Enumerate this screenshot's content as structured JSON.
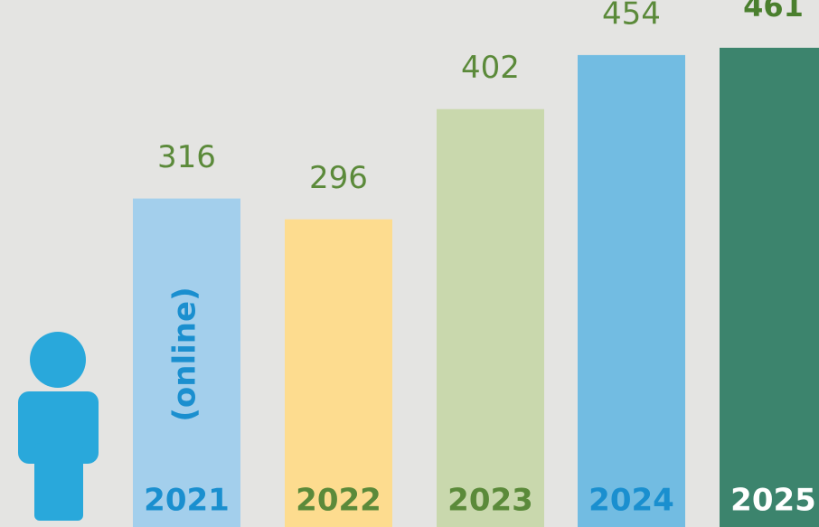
{
  "chart_data": {
    "type": "bar",
    "categories": [
      "2021",
      "2022",
      "2023",
      "2024",
      "2025"
    ],
    "values": [
      316,
      296,
      402,
      454,
      461
    ],
    "colors": [
      "#a3cfec",
      "#fddc8f",
      "#c9d8ad",
      "#72bce2",
      "#3c846d"
    ],
    "label_colors": [
      "#1a8fcf",
      "#5b8a3a",
      "#5b8a3a",
      "#1a8fcf",
      "#ffffff"
    ],
    "annotation": "(online)"
  }
}
